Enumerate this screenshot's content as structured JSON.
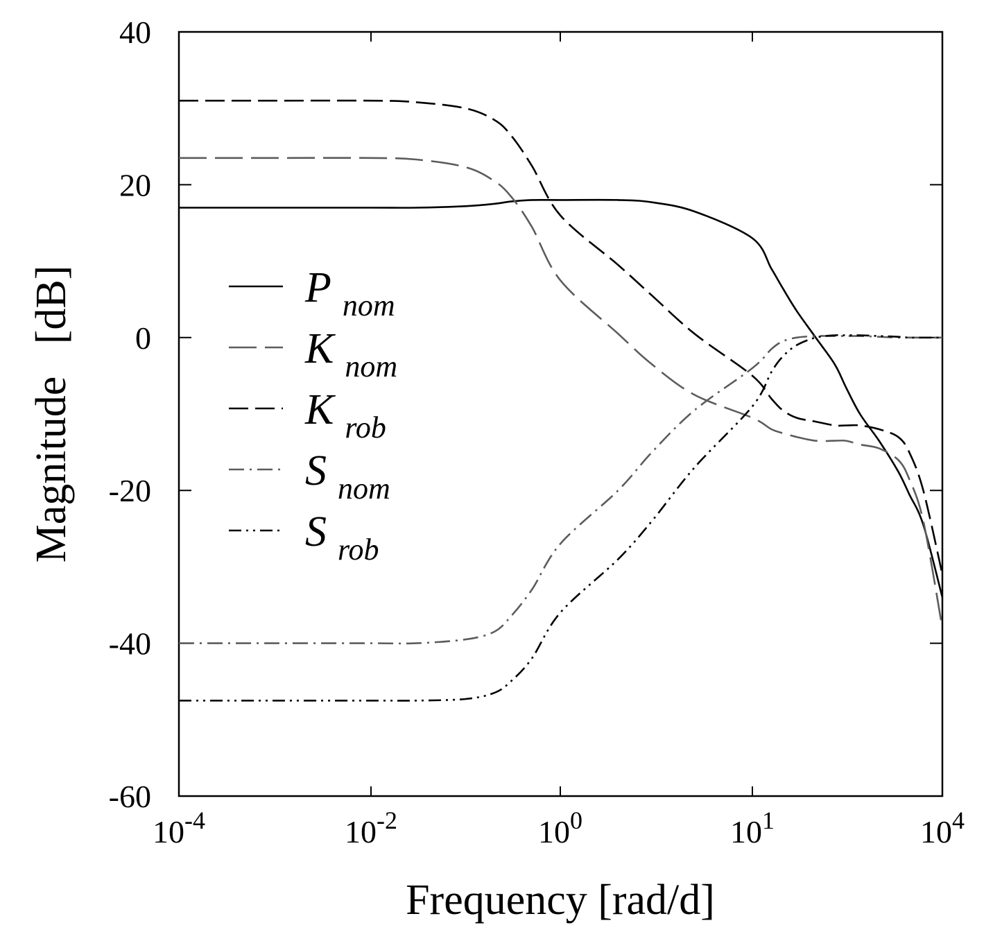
{
  "chart_data": {
    "type": "line",
    "xlabel": "Frequency [rad/d]",
    "ylabel": "Magnitude   [dB]",
    "xscale": "log",
    "xlim": [
      0.0001,
      10000
    ],
    "ylim": [
      -60,
      40
    ],
    "grid": false,
    "legend_position": "center-left",
    "x_ticks": [
      {
        "base": "10",
        "exp": "-4"
      },
      {
        "base": "10",
        "exp": "-2"
      },
      {
        "base": "10",
        "exp": "0"
      },
      {
        "base": "10",
        "exp": "1"
      },
      {
        "base": "10",
        "exp": "4"
      }
    ],
    "y_ticks": [
      "40",
      "20",
      "0",
      "-20",
      "-40",
      "-60"
    ],
    "x": [
      0.0001,
      0.001,
      0.01,
      0.03,
      0.1,
      0.2,
      0.3,
      0.5,
      1,
      2,
      3,
      5,
      10,
      20,
      30,
      50,
      100,
      200,
      300,
      500,
      1000,
      2000,
      3000,
      5000,
      10000
    ],
    "series": [
      {
        "name": "P",
        "subscript": "nom",
        "style": "solid",
        "color": "#000000",
        "values": [
          17,
          17,
          17,
          17,
          17.2,
          17.5,
          17.8,
          18,
          18,
          18,
          17.7,
          16.5,
          13,
          9,
          6.5,
          3.5,
          0,
          -3.5,
          -6.5,
          -10,
          -13.5,
          -17.5,
          -20.5,
          -24.5,
          -34
        ]
      },
      {
        "name": "K",
        "subscript": "nom",
        "style": "longdash",
        "color": "#5c5c5c",
        "values": [
          23.5,
          23.5,
          23.5,
          23.3,
          22.3,
          20.5,
          18.5,
          14.5,
          7.5,
          0.5,
          -3.5,
          -7.5,
          -10.5,
          -12,
          -12.5,
          -13,
          -13.5,
          -13.5,
          -13.5,
          -14,
          -14.5,
          -16,
          -18.5,
          -24,
          -38
        ]
      },
      {
        "name": "K",
        "subscript": "rob",
        "style": "dash",
        "color": "#000000",
        "values": [
          31,
          31,
          31,
          30.8,
          30,
          28.5,
          26.5,
          22.5,
          16,
          9.5,
          5.5,
          0.5,
          -5,
          -8,
          -9.5,
          -10.5,
          -11,
          -11.5,
          -11.5,
          -11.5,
          -12,
          -13,
          -15,
          -20,
          -31
        ]
      },
      {
        "name": "S",
        "subscript": "nom",
        "style": "dashdot",
        "color": "#5c5c5c",
        "values": [
          -40,
          -40,
          -40,
          -40,
          -39.5,
          -38.5,
          -36.5,
          -33,
          -27,
          -20,
          -15,
          -9.5,
          -4,
          -1.5,
          -0.5,
          0,
          0.2,
          0.2,
          0.2,
          0.2,
          0.1,
          0,
          0,
          0,
          0
        ]
      },
      {
        "name": "S",
        "subscript": "rob",
        "style": "dashdotdot",
        "color": "#000000",
        "values": [
          -47.5,
          -47.5,
          -47.5,
          -47.5,
          -47.3,
          -46.5,
          -45,
          -42,
          -36,
          -29,
          -24,
          -17,
          -9,
          -4.5,
          -2.5,
          -1,
          0,
          0.3,
          0.3,
          0.3,
          0.2,
          0.1,
          0,
          0,
          0
        ]
      }
    ]
  }
}
